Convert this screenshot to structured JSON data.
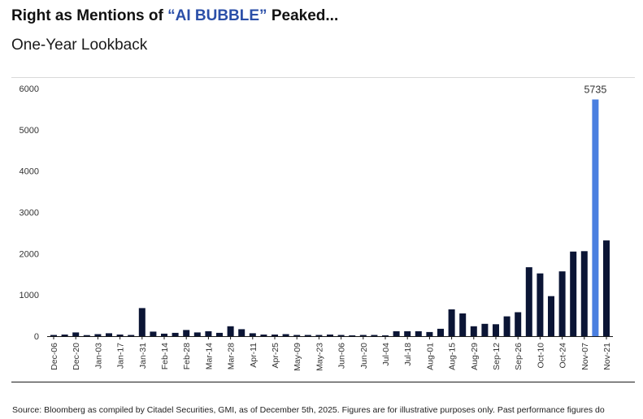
{
  "header": {
    "title_prefix": "Right as Mentions of ",
    "title_highlight": "“AI BUBBLE”",
    "title_suffix": " Peaked...",
    "subtitle": "One-Year Lookback"
  },
  "footer": {
    "source": "Source: Bloomberg as compiled by Citadel Securities, GMI, as of December 5th, 2025. Figures are for illustrative purposes only. Past performance figures do"
  },
  "colors": {
    "bar": "#0b1535",
    "highlight_bar": "#4a7fe0",
    "title_highlight": "#2b4fa8"
  },
  "chart_data": {
    "type": "bar",
    "title": "",
    "xlabel": "",
    "ylabel": "",
    "ylim": [
      0,
      6000
    ],
    "yticks": [
      0,
      1000,
      2000,
      3000,
      4000,
      5000,
      6000
    ],
    "grid": false,
    "x_tick_labels": [
      "Dec-06",
      "Dec-20",
      "Jan-03",
      "Jan-17",
      "Jan-31",
      "Feb-14",
      "Feb-28",
      "Mar-14",
      "Mar-28",
      "Apr-11",
      "Apr-25",
      "May-09",
      "May-23",
      "Jun-06",
      "Jun-20",
      "Jul-04",
      "Jul-18",
      "Aug-01",
      "Aug-15",
      "Aug-29",
      "Sep-12",
      "Sep-26",
      "Oct-10",
      "Oct-24",
      "Nov-07",
      "Nov-21"
    ],
    "tick_every": 2,
    "values": [
      30,
      40,
      90,
      25,
      50,
      70,
      40,
      30,
      680,
      110,
      60,
      80,
      150,
      90,
      120,
      80,
      240,
      170,
      70,
      40,
      40,
      50,
      30,
      30,
      30,
      40,
      30,
      20,
      30,
      30,
      20,
      120,
      120,
      120,
      100,
      180,
      650,
      550,
      240,
      300,
      290,
      480,
      580,
      1670,
      1520,
      970,
      1570,
      2050,
      2060,
      5735,
      2320
    ],
    "highlight_index": 49,
    "data_labels": [
      {
        "index": 49,
        "text": "5735"
      }
    ]
  }
}
